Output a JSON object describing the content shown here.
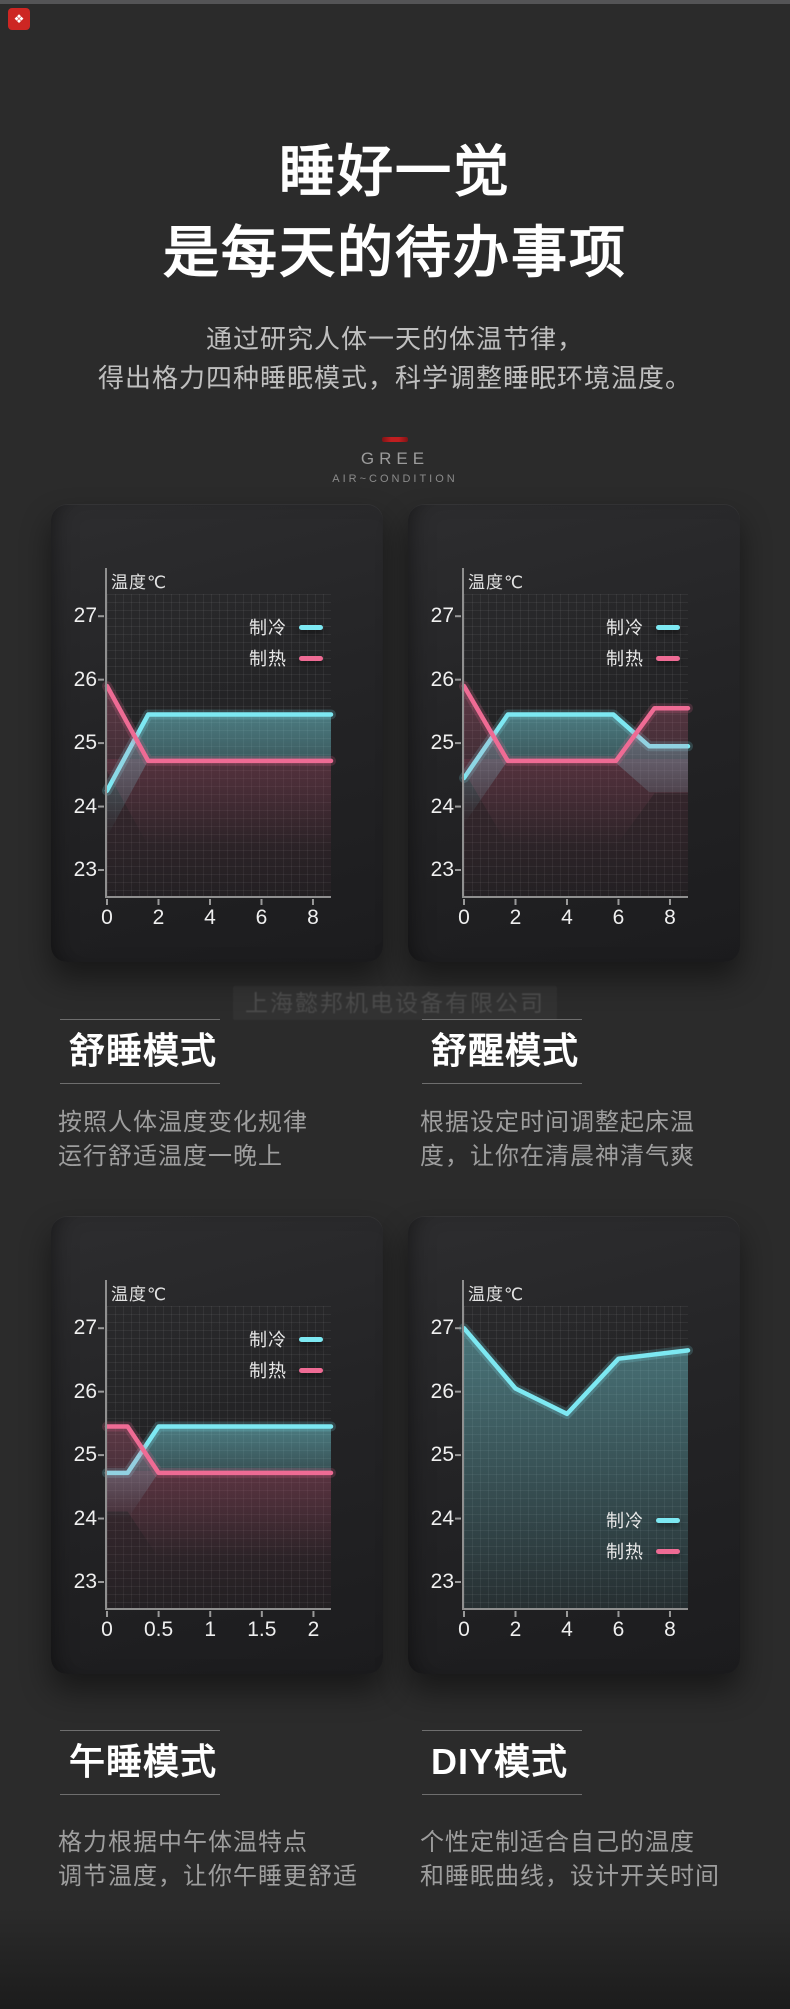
{
  "logo": {
    "glyph": "❖"
  },
  "hero": {
    "title_line1": "睡好一觉",
    "title_line2": "是每天的待办事项",
    "subtitle_line1": "通过研究人体一天的体温节律，",
    "subtitle_line2": "得出格力四种睡眠模式，科学调整睡眠环境温度。"
  },
  "brand": {
    "name": "GREE",
    "tagline": "AIR~CONDITION",
    "accent_color": "#c01e20"
  },
  "watermark": {
    "text": "上海懿邦机电设备有限公司"
  },
  "colors": {
    "cooling": "#7de8f2",
    "heating": "#ee6b94"
  },
  "chart_data": [
    {
      "type": "line",
      "ylabel": "温度℃",
      "x_ticks": [
        0,
        2,
        4,
        6,
        8
      ],
      "y_ticks": [
        27,
        26,
        25,
        24,
        23
      ],
      "x_max": 8.7,
      "y_max": 27.35,
      "y_min": 22.59,
      "grid": true,
      "legend_position": "top-right",
      "area_fill": false,
      "series": [
        {
          "name": "制冷",
          "color": "cooling",
          "points": [
            [
              0,
              24.25
            ],
            [
              1.6,
              25.45
            ],
            [
              8.7,
              25.45
            ]
          ]
        },
        {
          "name": "制热",
          "color": "heating",
          "points": [
            [
              0,
              25.9
            ],
            [
              1.6,
              24.72
            ],
            [
              8.7,
              24.72
            ]
          ]
        }
      ]
    },
    {
      "type": "line",
      "ylabel": "温度℃",
      "x_ticks": [
        0,
        2,
        4,
        6,
        8
      ],
      "y_ticks": [
        27,
        26,
        25,
        24,
        23
      ],
      "x_max": 8.7,
      "y_max": 27.35,
      "y_min": 22.59,
      "grid": true,
      "legend_position": "top-right",
      "area_fill": false,
      "series": [
        {
          "name": "制冷",
          "color": "cooling",
          "points": [
            [
              0,
              24.45
            ],
            [
              1.7,
              25.45
            ],
            [
              5.8,
              25.45
            ],
            [
              7.2,
              24.95
            ],
            [
              8.7,
              24.95
            ]
          ]
        },
        {
          "name": "制热",
          "color": "heating",
          "points": [
            [
              0,
              25.9
            ],
            [
              1.7,
              24.72
            ],
            [
              5.9,
              24.72
            ],
            [
              7.4,
              25.55
            ],
            [
              8.7,
              25.55
            ]
          ]
        }
      ]
    },
    {
      "type": "line",
      "ylabel": "温度℃",
      "x_ticks": [
        0,
        0.5,
        1,
        1.5,
        2
      ],
      "y_ticks": [
        27,
        26,
        25,
        24,
        23
      ],
      "x_max": 2.17,
      "y_max": 27.35,
      "y_min": 22.59,
      "grid": true,
      "legend_position": "top-right",
      "area_fill": false,
      "series": [
        {
          "name": "制冷",
          "color": "cooling",
          "points": [
            [
              0,
              24.72
            ],
            [
              0.2,
              24.72
            ],
            [
              0.5,
              25.45
            ],
            [
              2.17,
              25.45
            ]
          ]
        },
        {
          "name": "制热",
          "color": "heating",
          "points": [
            [
              0,
              25.45
            ],
            [
              0.2,
              25.45
            ],
            [
              0.5,
              24.72
            ],
            [
              2.17,
              24.72
            ]
          ]
        }
      ]
    },
    {
      "type": "line",
      "ylabel": "温度℃",
      "x_ticks": [
        0,
        2,
        4,
        6,
        8
      ],
      "y_ticks": [
        27,
        26,
        25,
        24,
        23
      ],
      "x_max": 8.7,
      "y_max": 27.35,
      "y_min": 22.59,
      "grid": true,
      "legend_position": "bottom-right",
      "area_fill": true,
      "series": [
        {
          "name": "制冷",
          "color": "cooling",
          "points": [
            [
              0,
              27.0
            ],
            [
              2,
              26.05
            ],
            [
              4,
              25.65
            ],
            [
              6,
              26.52
            ],
            [
              8.7,
              26.65
            ]
          ]
        },
        {
          "name": "制热",
          "color": "heating",
          "points": []
        }
      ]
    }
  ],
  "modes": [
    {
      "title": "舒睡模式",
      "desc": [
        "按照人体温度变化规律",
        "运行舒适温度一晚上"
      ]
    },
    {
      "title": "舒醒模式",
      "desc": [
        "根据设定时间调整起床温",
        "度，让你在清晨神清气爽"
      ]
    },
    {
      "title": "午睡模式",
      "desc": [
        "格力根据中午体温特点",
        "调节温度，让你午睡更舒适"
      ]
    },
    {
      "title": "DIY模式",
      "desc": [
        "个性定制适合自己的温度",
        "和睡眠曲线，设计开关时间"
      ]
    }
  ]
}
